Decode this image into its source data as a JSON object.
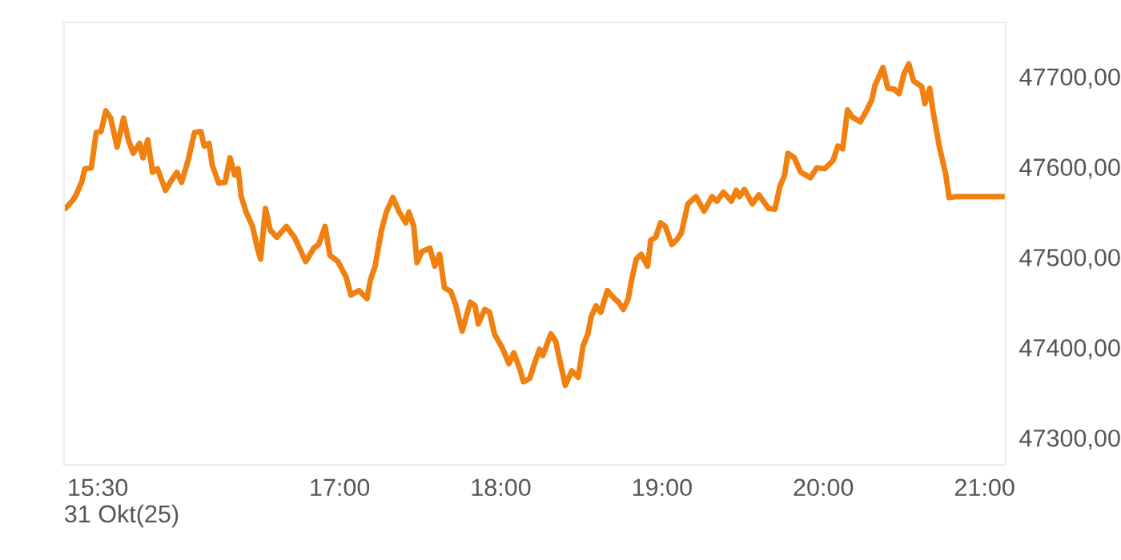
{
  "chart_data": {
    "type": "line",
    "x": [
      15.3,
      15.34,
      15.36,
      15.4,
      15.42,
      15.46,
      15.49,
      15.52,
      15.55,
      15.58,
      15.62,
      15.66,
      15.69,
      15.72,
      15.76,
      15.78,
      15.81,
      15.84,
      15.87,
      15.92,
      15.95,
      15.99,
      16.02,
      16.06,
      16.1,
      16.14,
      16.16,
      16.19,
      16.21,
      16.25,
      16.29,
      16.32,
      16.35,
      16.37,
      16.39,
      16.42,
      16.46,
      16.49,
      16.51,
      16.54,
      16.57,
      16.61,
      16.67,
      16.72,
      16.79,
      16.84,
      16.87,
      16.91,
      16.94,
      16.99,
      17.04,
      17.07,
      17.12,
      17.17,
      17.19,
      17.22,
      17.26,
      17.29,
      17.33,
      17.37,
      17.41,
      17.43,
      17.46,
      17.48,
      17.51,
      17.56,
      17.59,
      17.62,
      17.65,
      17.69,
      17.72,
      17.76,
      17.81,
      17.84,
      17.86,
      17.9,
      17.93,
      17.96,
      18.01,
      18.05,
      18.08,
      18.12,
      18.14,
      18.18,
      18.21,
      18.24,
      18.26,
      18.31,
      18.34,
      18.36,
      18.4,
      18.44,
      18.48,
      18.51,
      18.54,
      18.56,
      18.59,
      18.62,
      18.66,
      18.7,
      18.73,
      18.76,
      18.79,
      18.81,
      18.84,
      18.87,
      18.91,
      18.93,
      18.96,
      18.99,
      19.02,
      19.06,
      19.09,
      19.12,
      19.16,
      19.21,
      19.26,
      19.31,
      19.34,
      19.38,
      19.43,
      19.46,
      19.48,
      19.51,
      19.56,
      19.6,
      19.66,
      19.7,
      19.73,
      19.76,
      19.78,
      19.82,
      19.86,
      19.92,
      19.96,
      20.01,
      20.06,
      20.09,
      20.12,
      20.15,
      20.18,
      20.23,
      20.27,
      20.3,
      20.32,
      20.37,
      20.4,
      20.44,
      20.47,
      20.5,
      20.53,
      20.56,
      20.61,
      20.63,
      20.66,
      20.68,
      20.72,
      20.76,
      20.78,
      20.82,
      21.13
    ],
    "series": [
      {
        "color": "#f08010",
        "values": [
          47554,
          47562,
          47567,
          47583,
          47598,
          47599,
          47638,
          47639,
          47662,
          47654,
          47622,
          47654,
          47630,
          47615,
          47626,
          47610,
          47630,
          47594,
          47598,
          47574,
          47583,
          47594,
          47583,
          47607,
          47638,
          47639,
          47623,
          47626,
          47602,
          47582,
          47583,
          47610,
          47591,
          47598,
          47567,
          47550,
          47534,
          47510,
          47498,
          47554,
          47530,
          47522,
          47534,
          47522,
          47495,
          47510,
          47514,
          47534,
          47502,
          47495,
          47478,
          47458,
          47463,
          47454,
          47474,
          47490,
          47530,
          47550,
          47566,
          47550,
          47538,
          47550,
          47534,
          47494,
          47506,
          47510,
          47490,
          47503,
          47466,
          47462,
          47447,
          47418,
          47450,
          47446,
          47426,
          47442,
          47439,
          47415,
          47399,
          47382,
          47394,
          47375,
          47362,
          47366,
          47383,
          47398,
          47391,
          47415,
          47407,
          47390,
          47358,
          47374,
          47367,
          47402,
          47415,
          47434,
          47446,
          47439,
          47463,
          47455,
          47450,
          47442,
          47454,
          47474,
          47498,
          47503,
          47490,
          47519,
          47522,
          47538,
          47534,
          47514,
          47519,
          47527,
          47559,
          47567,
          47551,
          47567,
          47562,
          47572,
          47562,
          47574,
          47567,
          47575,
          47559,
          47569,
          47554,
          47553,
          47578,
          47591,
          47615,
          47610,
          47594,
          47588,
          47599,
          47598,
          47607,
          47623,
          47620,
          47663,
          47655,
          47650,
          47663,
          47674,
          47690,
          47710,
          47687,
          47686,
          47681,
          47703,
          47714,
          47695,
          47689,
          47670,
          47687,
          47662,
          47622,
          47591,
          47566,
          47567,
          47567
        ]
      }
    ],
    "xticks": [
      {
        "value": 15.5,
        "label": "15:30"
      },
      {
        "value": 17,
        "label": "17:00"
      },
      {
        "value": 18,
        "label": "18:00"
      },
      {
        "value": 19,
        "label": "19:00"
      },
      {
        "value": 20,
        "label": "20:00"
      },
      {
        "value": 21,
        "label": "21:00"
      }
    ],
    "xlim": [
      15.29,
      21.13
    ],
    "ylim": [
      47270,
      47760
    ],
    "yticks": [
      {
        "value": 47300,
        "label": "47300,00"
      },
      {
        "value": 47400,
        "label": "47400,00"
      },
      {
        "value": 47500,
        "label": "47500,00"
      },
      {
        "value": 47600,
        "label": "47600,00"
      },
      {
        "value": 47700,
        "label": "47700,00"
      }
    ],
    "annotations": [
      "31 Okt(25)"
    ],
    "grid": false,
    "legend": false
  }
}
